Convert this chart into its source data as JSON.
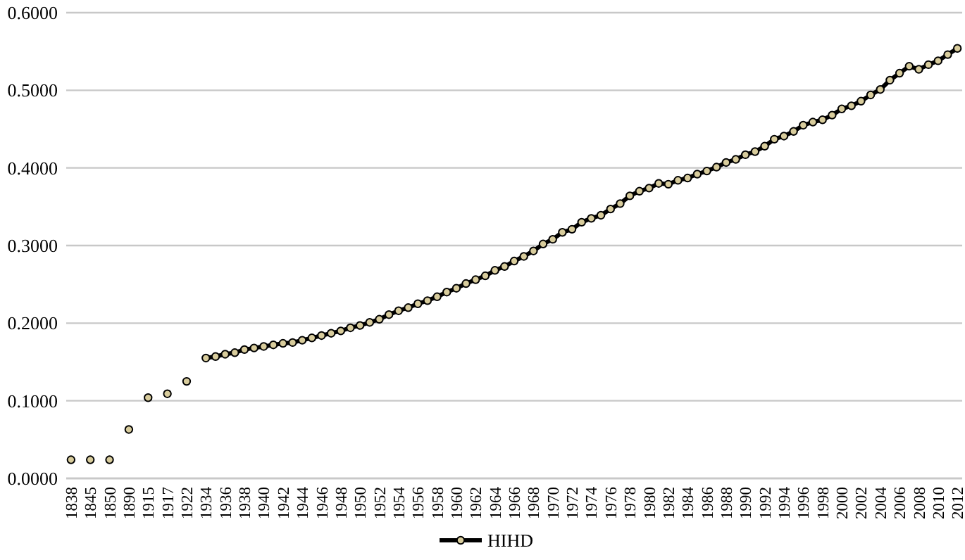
{
  "chart_data": {
    "type": "line",
    "categories": [
      "1838",
      null,
      "1845",
      null,
      "1850",
      null,
      "1890",
      null,
      "1915",
      null,
      "1917",
      null,
      "1922",
      null,
      "1934",
      null,
      "1936",
      null,
      "1938",
      null,
      "1940",
      null,
      "1942",
      null,
      "1944",
      null,
      "1946",
      null,
      "1948",
      null,
      "1950",
      null,
      "1952",
      null,
      "1954",
      null,
      "1956",
      null,
      "1958",
      null,
      "1960",
      null,
      "1962",
      null,
      "1964",
      null,
      "1966",
      null,
      "1968",
      null,
      "1970",
      null,
      "1972",
      null,
      "1974",
      null,
      "1976",
      null,
      "1978",
      null,
      "1980",
      null,
      "1982",
      null,
      "1984",
      null,
      "1986",
      null,
      "1988",
      null,
      "1990",
      null,
      "1992",
      null,
      "1994",
      null,
      "1996",
      null,
      "1998",
      null,
      "2000",
      null,
      "2002",
      null,
      "2004",
      null,
      "2006",
      null,
      "2008",
      null,
      "2010",
      null,
      "2012"
    ],
    "series": [
      {
        "name": "HIHD",
        "color": "#000000",
        "values": [
          0.024,
          null,
          0.024,
          null,
          0.024,
          null,
          0.063,
          null,
          0.104,
          null,
          0.109,
          null,
          0.125,
          null,
          0.155,
          0.157,
          0.16,
          0.162,
          0.166,
          0.168,
          0.17,
          0.172,
          0.174,
          0.175,
          0.178,
          0.181,
          0.184,
          0.187,
          0.19,
          0.194,
          0.197,
          0.201,
          0.205,
          0.211,
          0.216,
          0.22,
          0.225,
          0.229,
          0.234,
          0.24,
          0.245,
          0.251,
          0.256,
          0.261,
          0.268,
          0.273,
          0.28,
          0.286,
          0.293,
          0.302,
          0.308,
          0.317,
          0.321,
          0.33,
          0.335,
          0.339,
          0.347,
          0.354,
          0.364,
          0.37,
          0.374,
          0.38,
          0.379,
          0.384,
          0.387,
          0.392,
          0.396,
          0.401,
          0.407,
          0.411,
          0.417,
          0.421,
          0.428,
          0.437,
          0.441,
          0.447,
          0.455,
          0.459,
          0.462,
          0.468,
          0.476,
          0.48,
          0.486,
          0.494,
          0.501,
          0.513,
          0.522,
          0.531,
          0.527,
          0.533,
          0.538,
          0.546,
          0.554
        ]
      }
    ],
    "ylim": [
      0,
      0.6
    ],
    "yticks": [
      {
        "value": 0,
        "label": "0.0000"
      },
      {
        "value": 0.1,
        "label": "0.1000"
      },
      {
        "value": 0.2,
        "label": "0.2000"
      },
      {
        "value": 0.3,
        "label": "0.3000"
      },
      {
        "value": 0.4,
        "label": "0.4000"
      },
      {
        "value": 0.5,
        "label": "0.5000"
      },
      {
        "value": 0.6,
        "label": "0.6000"
      }
    ],
    "grid": "y",
    "legend": "bottom",
    "marker": "circle",
    "line_style": "solid"
  }
}
